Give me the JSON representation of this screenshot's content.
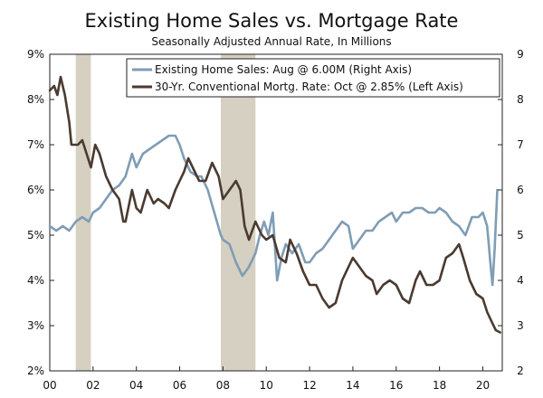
{
  "chart_data": {
    "type": "line",
    "title": "Existing Home Sales vs. Mortgage Rate",
    "subtitle": "Seasonally Adjusted Annual Rate, In Millions",
    "x_tick_labels": [
      "00",
      "02",
      "04",
      "06",
      "08",
      "10",
      "12",
      "14",
      "16",
      "18",
      "20"
    ],
    "x_tick_years": [
      2000,
      2002,
      2004,
      2006,
      2008,
      2010,
      2012,
      2014,
      2016,
      2018,
      2020
    ],
    "xlim": [
      2000,
      2020.9
    ],
    "left_axis": {
      "ylim": [
        2,
        9
      ],
      "ticks": [
        2,
        3,
        4,
        5,
        6,
        7,
        8,
        9
      ],
      "tick_labels": [
        "2%",
        "3%",
        "4%",
        "5%",
        "6%",
        "7%",
        "8%",
        "9%"
      ]
    },
    "right_axis": {
      "ylim": [
        2,
        9
      ],
      "ticks": [
        2,
        3,
        4,
        5,
        6,
        7,
        8,
        9
      ],
      "tick_labels": [
        "2",
        "3",
        "4",
        "5",
        "6",
        "7",
        "8",
        "9"
      ]
    },
    "recessions": [
      {
        "start": 2001.2,
        "end": 2001.9
      },
      {
        "start": 2007.9,
        "end": 2009.5
      }
    ],
    "legend": [
      {
        "label": "Existing Home Sales: Aug @ 6.00M (Right Axis)",
        "color": "#7f9db5"
      },
      {
        "label": "30-Yr. Conventional Mortg. Rate: Oct @ 2.85% (Left Axis)",
        "color": "#4a3a30"
      }
    ],
    "series": [
      {
        "name": "Existing Home Sales",
        "axis": "right",
        "color": "#7f9db5",
        "x": [
          2000.0,
          2000.3,
          2000.6,
          2000.9,
          2001.2,
          2001.5,
          2001.8,
          2002.0,
          2002.3,
          2002.6,
          2002.9,
          2003.2,
          2003.5,
          2003.8,
          2004.0,
          2004.3,
          2004.6,
          2004.9,
          2005.2,
          2005.5,
          2005.8,
          2006.0,
          2006.2,
          2006.5,
          2006.8,
          2007.0,
          2007.3,
          2007.6,
          2007.9,
          2008.0,
          2008.3,
          2008.6,
          2008.9,
          2009.2,
          2009.5,
          2009.7,
          2009.9,
          2010.1,
          2010.3,
          2010.5,
          2010.7,
          2010.9,
          2011.2,
          2011.5,
          2011.8,
          2012.0,
          2012.3,
          2012.6,
          2012.9,
          2013.2,
          2013.5,
          2013.8,
          2014.0,
          2014.3,
          2014.6,
          2014.9,
          2015.2,
          2015.5,
          2015.8,
          2016.0,
          2016.3,
          2016.6,
          2016.9,
          2017.2,
          2017.5,
          2017.8,
          2018.0,
          2018.3,
          2018.6,
          2018.9,
          2019.2,
          2019.5,
          2019.8,
          2020.0,
          2020.2,
          2020.35,
          2020.45,
          2020.55,
          2020.67
        ],
        "values": [
          5.2,
          5.1,
          5.2,
          5.1,
          5.3,
          5.4,
          5.3,
          5.5,
          5.6,
          5.8,
          6.0,
          6.1,
          6.3,
          6.8,
          6.5,
          6.8,
          6.9,
          7.0,
          7.1,
          7.2,
          7.2,
          7.0,
          6.7,
          6.4,
          6.3,
          6.3,
          6.0,
          5.5,
          5.0,
          4.9,
          4.8,
          4.4,
          4.1,
          4.3,
          4.6,
          5.0,
          5.3,
          5.0,
          5.5,
          4.0,
          4.5,
          4.8,
          4.6,
          4.8,
          4.4,
          4.4,
          4.6,
          4.7,
          4.9,
          5.1,
          5.3,
          5.2,
          4.7,
          4.9,
          5.1,
          5.1,
          5.3,
          5.4,
          5.5,
          5.3,
          5.5,
          5.5,
          5.6,
          5.6,
          5.5,
          5.5,
          5.6,
          5.5,
          5.3,
          5.2,
          5.0,
          5.4,
          5.4,
          5.5,
          5.2,
          4.4,
          3.9,
          4.7,
          6.0
        ]
      },
      {
        "name": "30-Yr. Conventional Mortg. Rate",
        "axis": "left",
        "color": "#4a3a30",
        "x": [
          2000.0,
          2000.2,
          2000.35,
          2000.5,
          2000.7,
          2000.9,
          2001.0,
          2001.3,
          2001.5,
          2001.7,
          2001.9,
          2002.1,
          2002.3,
          2002.6,
          2002.9,
          2003.2,
          2003.4,
          2003.5,
          2003.8,
          2004.0,
          2004.2,
          2004.5,
          2004.8,
          2005.0,
          2005.3,
          2005.5,
          2005.8,
          2006.0,
          2006.2,
          2006.4,
          2006.6,
          2006.9,
          2007.2,
          2007.5,
          2007.8,
          2008.0,
          2008.3,
          2008.6,
          2008.8,
          2009.0,
          2009.2,
          2009.5,
          2009.8,
          2010.0,
          2010.3,
          2010.6,
          2010.9,
          2011.1,
          2011.4,
          2011.7,
          2012.0,
          2012.3,
          2012.6,
          2012.9,
          2013.2,
          2013.5,
          2013.8,
          2014.0,
          2014.3,
          2014.6,
          2014.9,
          2015.1,
          2015.4,
          2015.7,
          2016.0,
          2016.3,
          2016.6,
          2016.9,
          2017.1,
          2017.4,
          2017.7,
          2018.0,
          2018.3,
          2018.6,
          2018.9,
          2019.1,
          2019.4,
          2019.7,
          2020.0,
          2020.2,
          2020.4,
          2020.6,
          2020.8
        ],
        "values": [
          8.2,
          8.3,
          8.1,
          8.5,
          8.1,
          7.5,
          7.0,
          7.0,
          7.1,
          6.8,
          6.5,
          7.0,
          6.8,
          6.3,
          6.0,
          5.8,
          5.3,
          5.3,
          6.0,
          5.6,
          5.5,
          6.0,
          5.7,
          5.8,
          5.7,
          5.6,
          6.0,
          6.2,
          6.4,
          6.7,
          6.5,
          6.2,
          6.2,
          6.6,
          6.3,
          5.8,
          6.0,
          6.2,
          6.0,
          5.2,
          4.9,
          5.3,
          5.0,
          4.9,
          5.0,
          4.5,
          4.4,
          4.9,
          4.6,
          4.2,
          3.9,
          3.9,
          3.6,
          3.4,
          3.5,
          4.0,
          4.3,
          4.5,
          4.3,
          4.1,
          4.0,
          3.7,
          3.9,
          4.0,
          3.9,
          3.6,
          3.5,
          4.0,
          4.2,
          3.9,
          3.9,
          4.0,
          4.5,
          4.6,
          4.8,
          4.5,
          4.0,
          3.7,
          3.6,
          3.3,
          3.1,
          2.9,
          2.85
        ]
      }
    ]
  }
}
